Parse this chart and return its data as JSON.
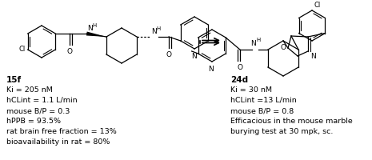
{
  "background_color": "#ffffff",
  "fig_width": 4.65,
  "fig_height": 2.0,
  "dpi": 100,
  "left_label": "15f",
  "left_text_lines": [
    "Ki = 205 nM",
    "hCLint = 1.1 L/min",
    "mouse B/P = 0.3",
    "hPPB = 93.5%",
    "rat brain free fraction = 13%",
    "bioavailability in rat = 80%"
  ],
  "right_label": "24d",
  "right_text_lines": [
    "Ki = 30 nM",
    "hCLint =13 L/min",
    "mouse B/P = 0.8",
    "Efficacious in the mouse marble",
    "burying test at 30 mpk, sc."
  ],
  "text_color": "#000000",
  "label_fontsize": 7.5,
  "text_fontsize": 6.8
}
